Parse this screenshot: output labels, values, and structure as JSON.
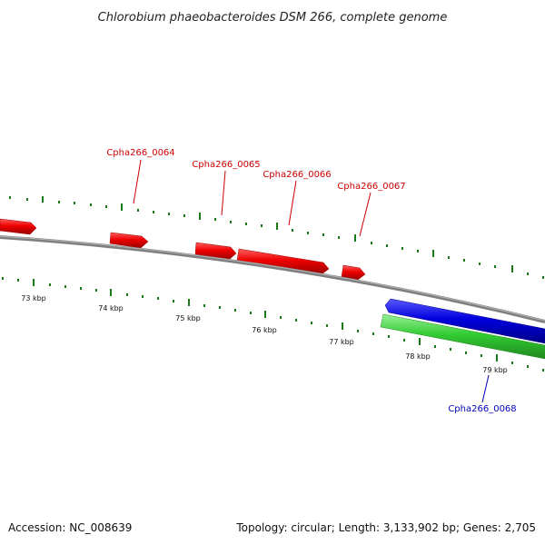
{
  "title": "Chlorobium phaeobacteroides DSM 266, complete genome",
  "footer": {
    "accession": "Accession: NC_008639",
    "summary": "Topology: circular; Length: 3,133,902 bp; Genes: 2,705"
  },
  "colors": {
    "forward_gene": "#ee0000",
    "reverse_gene": "#0000dd",
    "rna_gene": "#33cc33",
    "backbone": "#7f7f7f",
    "tick": "#1a7a1a",
    "label_forward": "#cc0000",
    "label_reverse": "#0000bb"
  },
  "scale_labels": [
    "73 kbp",
    "74 kbp",
    "75 kbp",
    "76 kbp",
    "77 kbp",
    "78 kbp",
    "79 kbp"
  ],
  "gene_labels": [
    {
      "name": "Cpha266_0064",
      "strand": "forward"
    },
    {
      "name": "Cpha266_0065",
      "strand": "forward"
    },
    {
      "name": "Cpha266_0066",
      "strand": "forward"
    },
    {
      "name": "Cpha266_0067",
      "strand": "forward"
    },
    {
      "name": "Cpha266_0068",
      "strand": "reverse"
    }
  ]
}
